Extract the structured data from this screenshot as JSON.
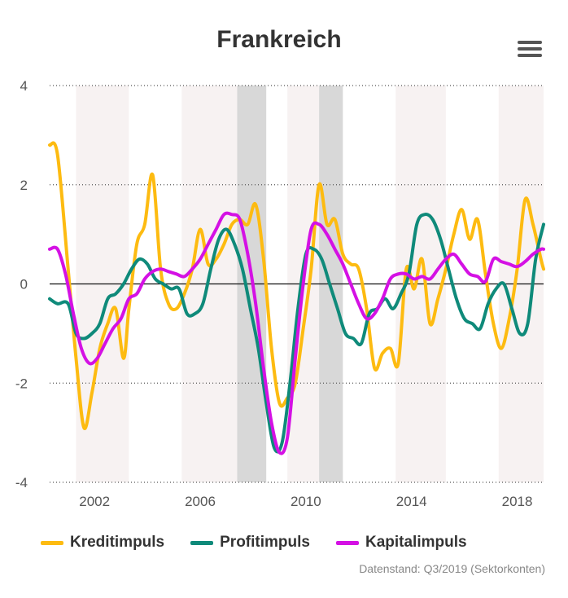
{
  "title": "Frankreich",
  "menu_icon": "hamburger-menu-icon",
  "credits": "Datenstand: Q3/2019 (Sektorkonten)",
  "legend": [
    {
      "label": "Kreditimpuls",
      "color": "#FDBB11"
    },
    {
      "label": "Profitimpuls",
      "color": "#0F8A7A"
    },
    {
      "label": "Kapitalimpuls",
      "color": "#D411E4"
    }
  ],
  "chart_data": {
    "type": "line",
    "xlim": [
      2000.3,
      2019.0
    ],
    "ylim": [
      -4,
      4
    ],
    "yticks": [
      "4",
      "2",
      "0",
      "-2",
      "-4"
    ],
    "xticks": [
      "2002",
      "2006",
      "2010",
      "2014",
      "2018"
    ],
    "grid": "horizontal dotted",
    "legend_position": "bottom",
    "shaded_periods_light": [
      [
        2001.3,
        2003.3
      ],
      [
        2005.3,
        2007.4
      ],
      [
        2009.3,
        2010.5
      ],
      [
        2013.4,
        2015.3
      ],
      [
        2017.3,
        2019.0
      ]
    ],
    "shaded_periods_dark": [
      [
        2007.4,
        2008.5
      ],
      [
        2010.5,
        2011.4
      ]
    ],
    "series": [
      {
        "name": "Kreditimpuls",
        "color": "#FDBB11",
        "x": [
          2000.3,
          2000.6,
          2001.0,
          2001.3,
          2001.6,
          2001.9,
          2002.2,
          2002.5,
          2002.8,
          2003.1,
          2003.3,
          2003.6,
          2003.9,
          2004.2,
          2004.5,
          2004.8,
          2005.1,
          2005.4,
          2005.7,
          2006.0,
          2006.3,
          2006.6,
          2006.9,
          2007.2,
          2007.5,
          2007.8,
          2008.1,
          2008.4,
          2008.7,
          2009.0,
          2009.3,
          2009.6,
          2009.9,
          2010.2,
          2010.5,
          2010.8,
          2011.1,
          2011.4,
          2011.7,
          2012.0,
          2012.3,
          2012.6,
          2012.9,
          2013.2,
          2013.5,
          2013.8,
          2014.1,
          2014.4,
          2014.7,
          2015.0,
          2015.3,
          2015.6,
          2015.9,
          2016.2,
          2016.5,
          2016.8,
          2017.1,
          2017.4,
          2017.7,
          2018.0,
          2018.3,
          2018.6,
          2018.9,
          2019.0
        ],
        "values": [
          2.8,
          2.6,
          0.3,
          -1.5,
          -2.9,
          -2.2,
          -1.3,
          -0.8,
          -0.5,
          -1.5,
          -0.5,
          0.8,
          1.2,
          2.2,
          0.3,
          -0.4,
          -0.5,
          -0.2,
          0.3,
          1.1,
          0.4,
          0.5,
          0.8,
          1.2,
          1.3,
          1.2,
          1.6,
          0.5,
          -1.3,
          -2.4,
          -2.3,
          -2.0,
          -0.9,
          0.3,
          2.0,
          1.2,
          1.3,
          0.6,
          0.4,
          0.3,
          -0.5,
          -1.7,
          -1.4,
          -1.3,
          -1.6,
          0.3,
          -0.1,
          0.5,
          -0.8,
          -0.3,
          0.3,
          1.0,
          1.5,
          0.9,
          1.3,
          0.2,
          -0.8,
          -1.3,
          -0.7,
          0.3,
          1.7,
          1.2,
          0.5,
          0.3
        ]
      },
      {
        "name": "Profitimpuls",
        "color": "#0F8A7A",
        "x": [
          2000.3,
          2000.6,
          2001.0,
          2001.3,
          2001.6,
          2001.9,
          2002.2,
          2002.5,
          2002.8,
          2003.1,
          2003.4,
          2003.7,
          2004.0,
          2004.3,
          2004.6,
          2004.9,
          2005.2,
          2005.5,
          2005.8,
          2006.1,
          2006.4,
          2006.7,
          2007.0,
          2007.3,
          2007.6,
          2007.9,
          2008.2,
          2008.5,
          2008.8,
          2009.1,
          2009.4,
          2009.7,
          2010.0,
          2010.3,
          2010.6,
          2010.9,
          2011.2,
          2011.5,
          2011.8,
          2012.1,
          2012.4,
          2012.7,
          2013.0,
          2013.3,
          2013.6,
          2013.9,
          2014.2,
          2014.5,
          2014.8,
          2015.1,
          2015.4,
          2015.7,
          2016.0,
          2016.3,
          2016.6,
          2016.9,
          2017.2,
          2017.5,
          2017.8,
          2018.1,
          2018.4,
          2018.7,
          2019.0
        ],
        "values": [
          -0.3,
          -0.4,
          -0.4,
          -1.0,
          -1.1,
          -1.0,
          -0.8,
          -0.3,
          -0.2,
          0.0,
          0.3,
          0.5,
          0.4,
          0.1,
          0.0,
          -0.1,
          -0.1,
          -0.6,
          -0.6,
          -0.4,
          0.3,
          0.9,
          1.1,
          0.8,
          0.3,
          -0.5,
          -1.3,
          -2.4,
          -3.3,
          -3.2,
          -2.0,
          -0.5,
          0.6,
          0.7,
          0.5,
          0.0,
          -0.5,
          -1.0,
          -1.1,
          -1.2,
          -0.6,
          -0.5,
          -0.3,
          -0.5,
          -0.2,
          0.2,
          1.2,
          1.4,
          1.3,
          0.9,
          0.3,
          -0.3,
          -0.7,
          -0.8,
          -0.9,
          -0.4,
          -0.1,
          0.0,
          -0.5,
          -1.0,
          -0.8,
          0.5,
          1.2
        ]
      },
      {
        "name": "Kapitalimpuls",
        "color": "#D411E4",
        "x": [
          2000.3,
          2000.6,
          2000.9,
          2001.2,
          2001.5,
          2001.8,
          2002.1,
          2002.4,
          2002.7,
          2003.0,
          2003.3,
          2003.6,
          2003.9,
          2004.2,
          2004.5,
          2004.8,
          2005.1,
          2005.4,
          2005.7,
          2006.0,
          2006.3,
          2006.6,
          2006.9,
          2007.2,
          2007.5,
          2007.8,
          2008.1,
          2008.4,
          2008.7,
          2009.0,
          2009.3,
          2009.6,
          2009.9,
          2010.2,
          2010.5,
          2010.8,
          2011.1,
          2011.4,
          2011.7,
          2012.0,
          2012.3,
          2012.6,
          2012.9,
          2013.2,
          2013.5,
          2013.8,
          2014.1,
          2014.4,
          2014.7,
          2015.0,
          2015.3,
          2015.6,
          2015.9,
          2016.2,
          2016.5,
          2016.8,
          2017.1,
          2017.4,
          2017.7,
          2018.0,
          2018.3,
          2018.6,
          2018.9,
          2019.0
        ],
        "values": [
          0.7,
          0.7,
          0.2,
          -0.6,
          -1.3,
          -1.6,
          -1.5,
          -1.2,
          -0.9,
          -0.7,
          -0.3,
          -0.2,
          0.1,
          0.25,
          0.3,
          0.25,
          0.2,
          0.15,
          0.3,
          0.5,
          0.8,
          1.1,
          1.4,
          1.4,
          1.3,
          0.6,
          -0.4,
          -1.7,
          -2.8,
          -3.4,
          -3.1,
          -1.5,
          0.0,
          1.1,
          1.2,
          1.0,
          0.7,
          0.4,
          0.0,
          -0.4,
          -0.7,
          -0.6,
          -0.3,
          0.1,
          0.2,
          0.2,
          0.1,
          0.15,
          0.1,
          0.3,
          0.5,
          0.6,
          0.4,
          0.2,
          0.15,
          0.05,
          0.5,
          0.45,
          0.4,
          0.35,
          0.45,
          0.6,
          0.7,
          0.7
        ]
      }
    ]
  }
}
